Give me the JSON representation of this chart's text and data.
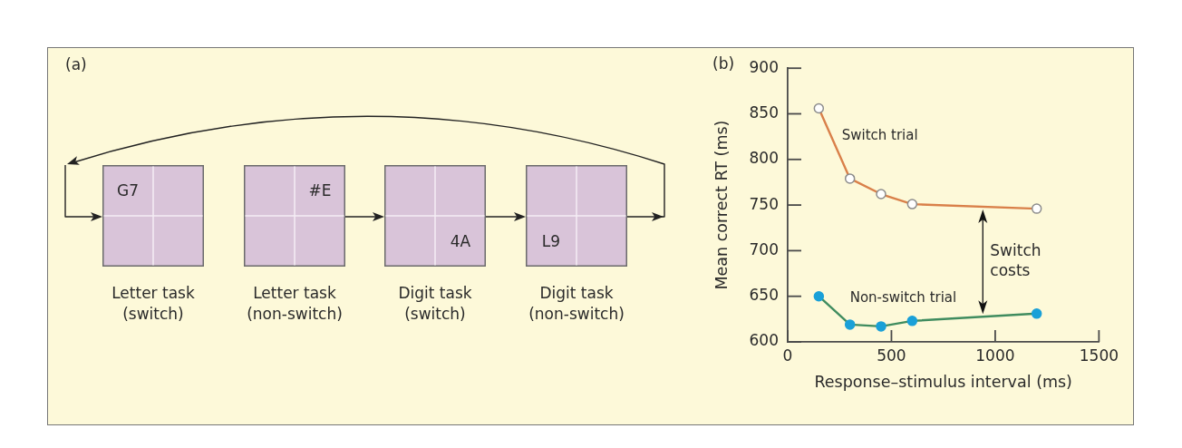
{
  "chart_data": [
    {
      "type": "other",
      "title": "(a)",
      "categories": [
        "Letter task\n(switch)",
        "Letter task\n(non-switch)",
        "Digit task\n(switch)",
        "Digit task\n(non-switch)"
      ],
      "annotations": [
        "G7",
        "#E",
        "4A",
        "L9"
      ]
    },
    {
      "type": "line",
      "title": "(b)",
      "xlabel": "Response–stimulus interval (ms)",
      "ylabel": "Mean correct RT (ms)",
      "x": [
        150,
        300,
        450,
        600,
        1200
      ],
      "series": [
        {
          "name": "Switch trial",
          "color": "#d9804a",
          "values": [
            856,
            779,
            762,
            751,
            746
          ]
        },
        {
          "name": "Non-switch trial",
          "color": "#3f8c5f",
          "values": [
            650,
            619,
            617,
            623,
            631
          ]
        }
      ],
      "xlim": [
        0,
        1500
      ],
      "xticks": [
        0,
        500,
        1000,
        1500
      ],
      "ylim": [
        600,
        900
      ],
      "yticks": [
        600,
        650,
        700,
        750,
        800,
        850,
        900
      ],
      "marker": "circle",
      "annotations": [
        "Switch\ncosts"
      ]
    }
  ]
}
